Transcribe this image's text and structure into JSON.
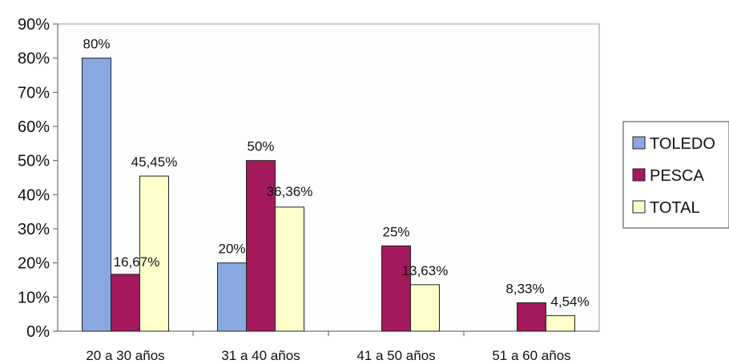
{
  "chart_data": {
    "type": "bar",
    "categories": [
      "20 a 30 años",
      "31 a 40 años",
      "41 a 50 años",
      "51 a 60 años"
    ],
    "series": [
      {
        "name": "TOLEDO",
        "color": "#8aa8e0",
        "values": [
          80,
          20,
          null,
          null
        ],
        "labels": [
          "80%",
          "20%",
          "",
          ""
        ]
      },
      {
        "name": "PESCA",
        "color": "#a3195b",
        "values": [
          16.67,
          50,
          25,
          8.33
        ],
        "labels": [
          "16,67%",
          "50%",
          "25%",
          "8,33%"
        ]
      },
      {
        "name": "TOTAL",
        "color": "#ffffcc",
        "values": [
          45.45,
          36.36,
          13.63,
          4.54
        ],
        "labels": [
          "45,45%",
          "36,36%",
          "13,63%",
          "4,54%"
        ]
      }
    ],
    "y_ticks": [
      "0%",
      "10%",
      "20%",
      "30%",
      "40%",
      "50%",
      "60%",
      "70%",
      "80%",
      "90%"
    ],
    "ylim": [
      0,
      90
    ],
    "legend_position": "right",
    "grid": false,
    "title": "",
    "xlabel": "",
    "ylabel": ""
  }
}
